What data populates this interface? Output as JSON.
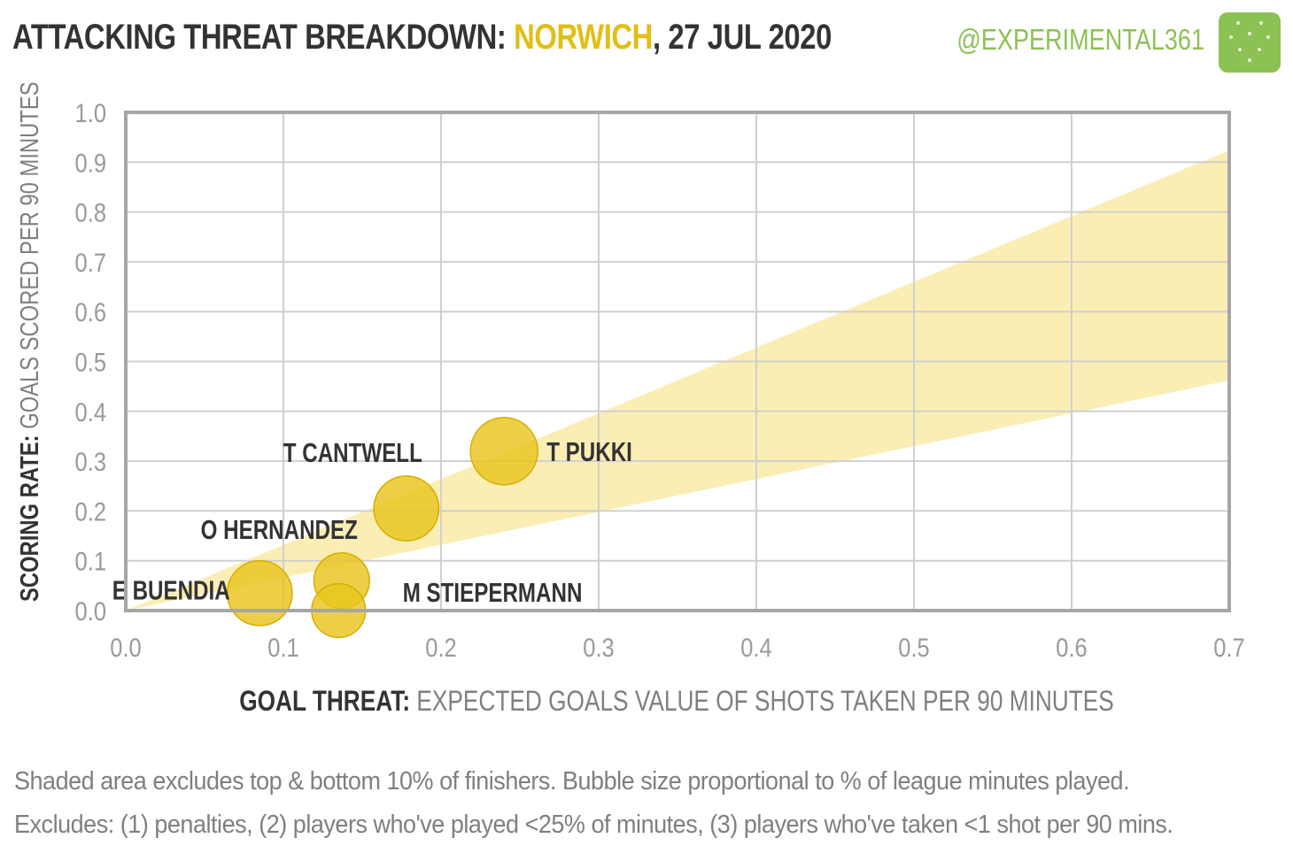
{
  "header": {
    "title_prefix": "ATTACKING THREAT BREAKDOWN: ",
    "team": "NORWICH",
    "title_suffix": ", 27 JUL 2020",
    "handle": "@EXPERIMENTAL361",
    "logo_icon": "football-pitch-icon"
  },
  "axes": {
    "ylabel_strong": "SCORING RATE:",
    "ylabel_rest": " GOALS SCORED PER 90 MINUTES",
    "xlabel_strong": "GOAL THREAT:",
    "xlabel_rest": " EXPECTED GOALS VALUE OF SHOTS TAKEN PER 90 MINUTES"
  },
  "footnotes": {
    "line1": "Shaded area excludes top & bottom 10% of finishers. Bubble size proportional to % of league minutes played.",
    "line2": "Excludes: (1) penalties, (2) players who've played <25% of minutes, (3) players who've taken <1 shot per 90 mins."
  },
  "colors": {
    "bubble": "#e8c51d",
    "band": "#fbeeb5",
    "team": "#e2be16",
    "handle": "#8cc153"
  },
  "chart_data": {
    "type": "scatter",
    "xlim": [
      0,
      0.7
    ],
    "ylim": [
      0,
      1.0
    ],
    "x_ticks": [
      "0.0",
      "0.1",
      "0.2",
      "0.3",
      "0.4",
      "0.5",
      "0.6",
      "0.7"
    ],
    "y_ticks": [
      "0.0",
      "0.1",
      "0.2",
      "0.3",
      "0.4",
      "0.5",
      "0.6",
      "0.7",
      "0.8",
      "0.9",
      "1.0"
    ],
    "grid": true,
    "band": {
      "lower_slope": 0.66,
      "upper_slope": 1.32
    },
    "points": [
      {
        "name": "T PUKKI",
        "x": 0.24,
        "y": 0.32,
        "size": 1.0,
        "label_side": "right"
      },
      {
        "name": "T CANTWELL",
        "x": 0.178,
        "y": 0.205,
        "size": 0.93,
        "label_side": "above-left"
      },
      {
        "name": "O HERNANDEZ",
        "x": 0.137,
        "y": 0.06,
        "size": 0.68,
        "label_side": "above-left"
      },
      {
        "name": "E BUENDIA",
        "x": 0.085,
        "y": 0.035,
        "size": 0.93,
        "label_side": "left"
      },
      {
        "name": "M STIEPERMANN",
        "x": 0.135,
        "y": 0.0,
        "size": 0.64,
        "label_side": "right"
      }
    ]
  }
}
